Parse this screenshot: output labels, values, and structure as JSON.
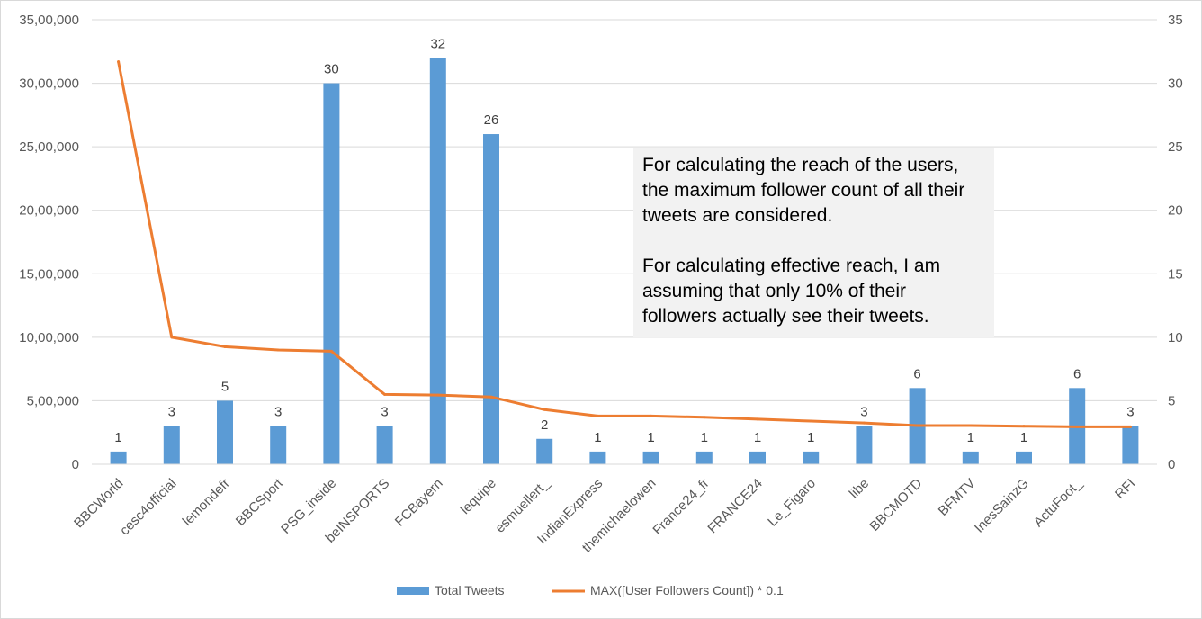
{
  "chart_data": {
    "type": "bar",
    "categories": [
      "BBCWorld",
      "cesc4official",
      "lemondefr",
      "BBCSport",
      "PSG_inside",
      "beINSPORTS",
      "FCBayern",
      "lequipe",
      "esmuellert_",
      "IndianExpress",
      "themichaelowen",
      "France24_fr",
      "FRANCE24",
      "Le_Figaro",
      "libe",
      "BBCMOTD",
      "BFMTV",
      "InesSainzG",
      "ActuFoot_",
      "RFI"
    ],
    "series": [
      {
        "name": "Total Tweets",
        "type": "bar",
        "axis": "secondary",
        "color": "#5b9bd5",
        "values": [
          1,
          3,
          5,
          3,
          30,
          3,
          32,
          26,
          2,
          1,
          1,
          1,
          1,
          1,
          3,
          6,
          1,
          1,
          6,
          3
        ],
        "data_labels": [
          "1",
          "3",
          "5",
          "3",
          "30",
          "3",
          "32",
          "26",
          "2",
          "1",
          "1",
          "1",
          "1",
          "1",
          "3",
          "6",
          "1",
          "1",
          "6",
          "3"
        ]
      },
      {
        "name": "MAX([User Followers Count]) * 0.1",
        "type": "line",
        "axis": "primary",
        "color": "#ed7d31",
        "values": [
          3170000,
          1000000,
          925000,
          900000,
          890000,
          550000,
          545000,
          530000,
          430000,
          380000,
          380000,
          370000,
          355000,
          340000,
          325000,
          305000,
          305000,
          300000,
          295000,
          295000
        ]
      }
    ],
    "y_primary": {
      "ylim": [
        0,
        3500000
      ],
      "ticks": [
        0,
        500000,
        1000000,
        1500000,
        2000000,
        2500000,
        3000000,
        3500000
      ],
      "tick_labels": [
        "0",
        "5,00,000",
        "10,00,000",
        "15,00,000",
        "20,00,000",
        "25,00,000",
        "30,00,000",
        "35,00,000"
      ]
    },
    "y_secondary": {
      "ylim": [
        0,
        35
      ],
      "ticks": [
        0,
        5,
        10,
        15,
        20,
        25,
        30,
        35
      ],
      "tick_labels": [
        "0",
        "5",
        "10",
        "15",
        "20",
        "25",
        "30",
        "35"
      ]
    },
    "title": "",
    "xlabel": "",
    "ylabel": "",
    "grid": true,
    "legend": "bottom",
    "gridline_color": "#d9d9d9"
  },
  "annotation": {
    "paragraph_1": "For calculating the reach of the users, the maximum follower count of all their tweets are considered.",
    "paragraph_2": "For calculating effective reach, I am assuming that only 10% of their followers actually see their tweets."
  }
}
